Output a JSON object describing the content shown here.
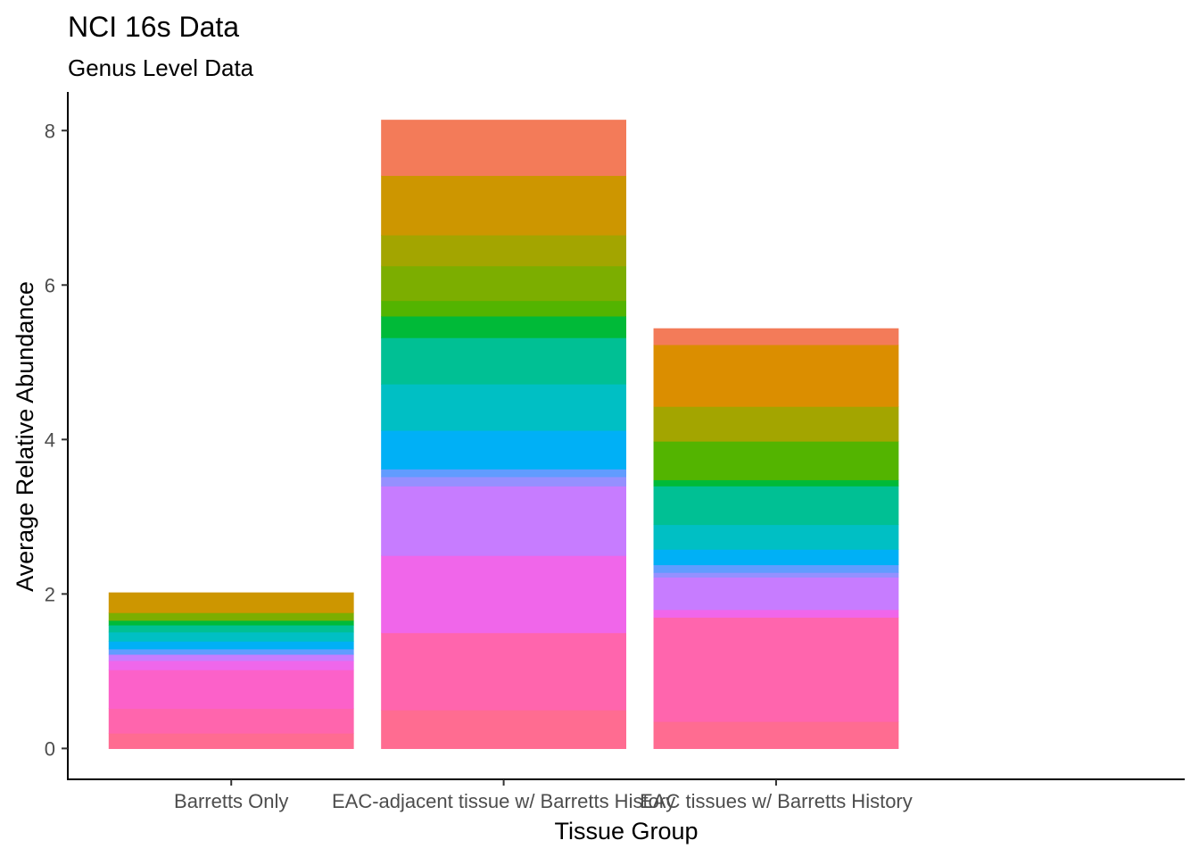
{
  "chart_data": {
    "type": "bar",
    "stacked": true,
    "title": "NCI 16s Data",
    "subtitle": "Genus Level Data",
    "xlabel": "Tissue Group",
    "ylabel": "Average Relative Abundance",
    "ylim": [
      -0.4,
      8.5
    ],
    "yticks": [
      0,
      2,
      4,
      6,
      8
    ],
    "grid": false,
    "legend": "none",
    "categories": [
      "Barretts Only",
      "EAC-adjacent tissue w/ Barretts History",
      "EAC tissues w/ Barretts History"
    ],
    "totals": [
      2.02,
      8.14,
      5.44
    ],
    "stacks": [
      [
        {
          "value": 0.2,
          "color": "#ff6c91"
        },
        {
          "value": 0.32,
          "color": "#ff65ad"
        },
        {
          "value": 0.5,
          "color": "#fc61c9"
        },
        {
          "value": 0.12,
          "color": "#ef67eb"
        },
        {
          "value": 0.08,
          "color": "#c77cff"
        },
        {
          "value": 0.07,
          "color": "#619cff"
        },
        {
          "value": 0.1,
          "color": "#00b0f6"
        },
        {
          "value": 0.12,
          "color": "#00bfc4"
        },
        {
          "value": 0.09,
          "color": "#00c094"
        },
        {
          "value": 0.06,
          "color": "#00ba38"
        },
        {
          "value": 0.1,
          "color": "#7cae00"
        },
        {
          "value": 0.26,
          "color": "#cd9600"
        }
      ],
      [
        {
          "value": 0.5,
          "color": "#ff6c91"
        },
        {
          "value": 1.0,
          "color": "#ff65ad"
        },
        {
          "value": 1.0,
          "color": "#f066ea"
        },
        {
          "value": 0.9,
          "color": "#c77cff"
        },
        {
          "value": 0.12,
          "color": "#9590ff"
        },
        {
          "value": 0.1,
          "color": "#619cff"
        },
        {
          "value": 0.5,
          "color": "#00b0f6"
        },
        {
          "value": 0.6,
          "color": "#00bfc4"
        },
        {
          "value": 0.6,
          "color": "#00c094"
        },
        {
          "value": 0.28,
          "color": "#00ba38"
        },
        {
          "value": 0.2,
          "color": "#53b400"
        },
        {
          "value": 0.45,
          "color": "#7cae00"
        },
        {
          "value": 0.4,
          "color": "#a3a500"
        },
        {
          "value": 0.77,
          "color": "#cd9600"
        },
        {
          "value": 0.72,
          "color": "#f37b59"
        }
      ],
      [
        {
          "value": 0.35,
          "color": "#ff6c91"
        },
        {
          "value": 1.35,
          "color": "#ff65ad"
        },
        {
          "value": 0.1,
          "color": "#f066ea"
        },
        {
          "value": 0.42,
          "color": "#c77cff"
        },
        {
          "value": 0.06,
          "color": "#9590ff"
        },
        {
          "value": 0.1,
          "color": "#619cff"
        },
        {
          "value": 0.2,
          "color": "#00b0f6"
        },
        {
          "value": 0.32,
          "color": "#00bfc4"
        },
        {
          "value": 0.5,
          "color": "#00c094"
        },
        {
          "value": 0.08,
          "color": "#00ba38"
        },
        {
          "value": 0.5,
          "color": "#53b400"
        },
        {
          "value": 0.45,
          "color": "#a3a500"
        },
        {
          "value": 0.8,
          "color": "#db8e00"
        },
        {
          "value": 0.21,
          "color": "#f37b59"
        }
      ]
    ]
  }
}
